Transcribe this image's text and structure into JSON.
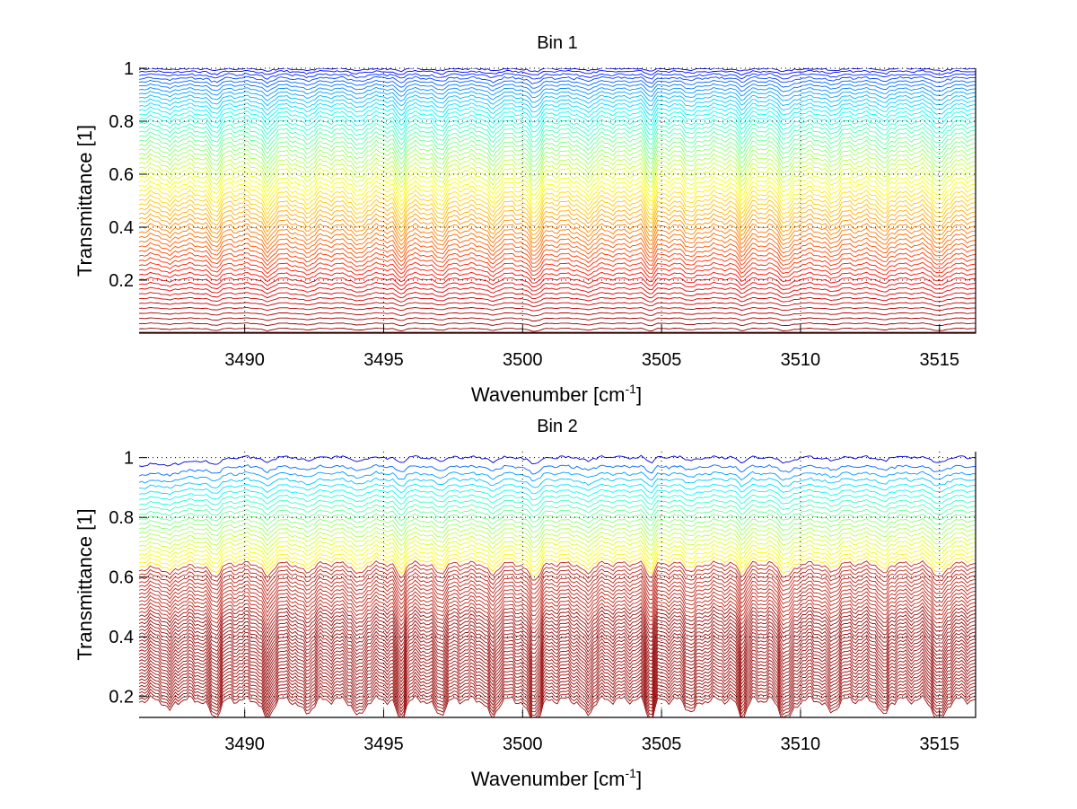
{
  "chart_data": [
    {
      "type": "line",
      "title": "Bin 1",
      "xlabel": "Wavenumber [cm",
      "xlabel_sup": "-1",
      "xlabel_end": "]",
      "ylabel": "Transmittance [1]",
      "xlim": [
        3486.2,
        3516.3
      ],
      "ylim": [
        0.0,
        1.0
      ],
      "xticks": [
        3490,
        3495,
        3500,
        3505,
        3510,
        3515
      ],
      "xtick_labels": [
        "3490",
        "3495",
        "3500",
        "3505",
        "3510",
        "3515"
      ],
      "yticks": [
        0.2,
        0.4,
        0.6,
        0.8,
        1
      ],
      "ytick_labels": [
        "0.2",
        "0.4",
        "0.6",
        "0.8",
        "1"
      ],
      "grid": true,
      "colormap": "jet",
      "series_count": 60,
      "baseline_min": 0.0,
      "baseline_max": 1.0,
      "absorption_lines": [
        3487.3,
        3488.9,
        3490.8,
        3492.2,
        3494.1,
        3495.6,
        3497.0,
        3498.9,
        3500.4,
        3502.3,
        3504.6,
        3506.1,
        3507.9,
        3509.5,
        3511.1,
        3513.0,
        3515.0
      ]
    },
    {
      "type": "line",
      "title": "Bin 2",
      "xlabel": "Wavenumber [cm",
      "xlabel_sup": "-1",
      "xlabel_end": "]",
      "ylabel": "Transmittance [1]",
      "xlim": [
        3486.2,
        3516.3
      ],
      "ylim": [
        0.13,
        1.02
      ],
      "xticks": [
        3490,
        3495,
        3500,
        3505,
        3510,
        3515
      ],
      "xtick_labels": [
        "3490",
        "3495",
        "3500",
        "3505",
        "3510",
        "3515"
      ],
      "yticks": [
        0.2,
        0.4,
        0.6,
        0.8,
        1
      ],
      "ytick_labels": [
        "0.2",
        "0.4",
        "0.6",
        "0.8",
        "1"
      ],
      "grid": true,
      "colormap": "jet",
      "series_count": 60,
      "baseline_min": 0.2,
      "baseline_max": 1.0,
      "absorption_lines": [
        3487.3,
        3488.9,
        3490.8,
        3492.2,
        3494.1,
        3495.6,
        3497.0,
        3498.9,
        3500.4,
        3502.3,
        3504.6,
        3506.1,
        3507.9,
        3509.5,
        3511.1,
        3513.0,
        3515.0
      ]
    }
  ]
}
